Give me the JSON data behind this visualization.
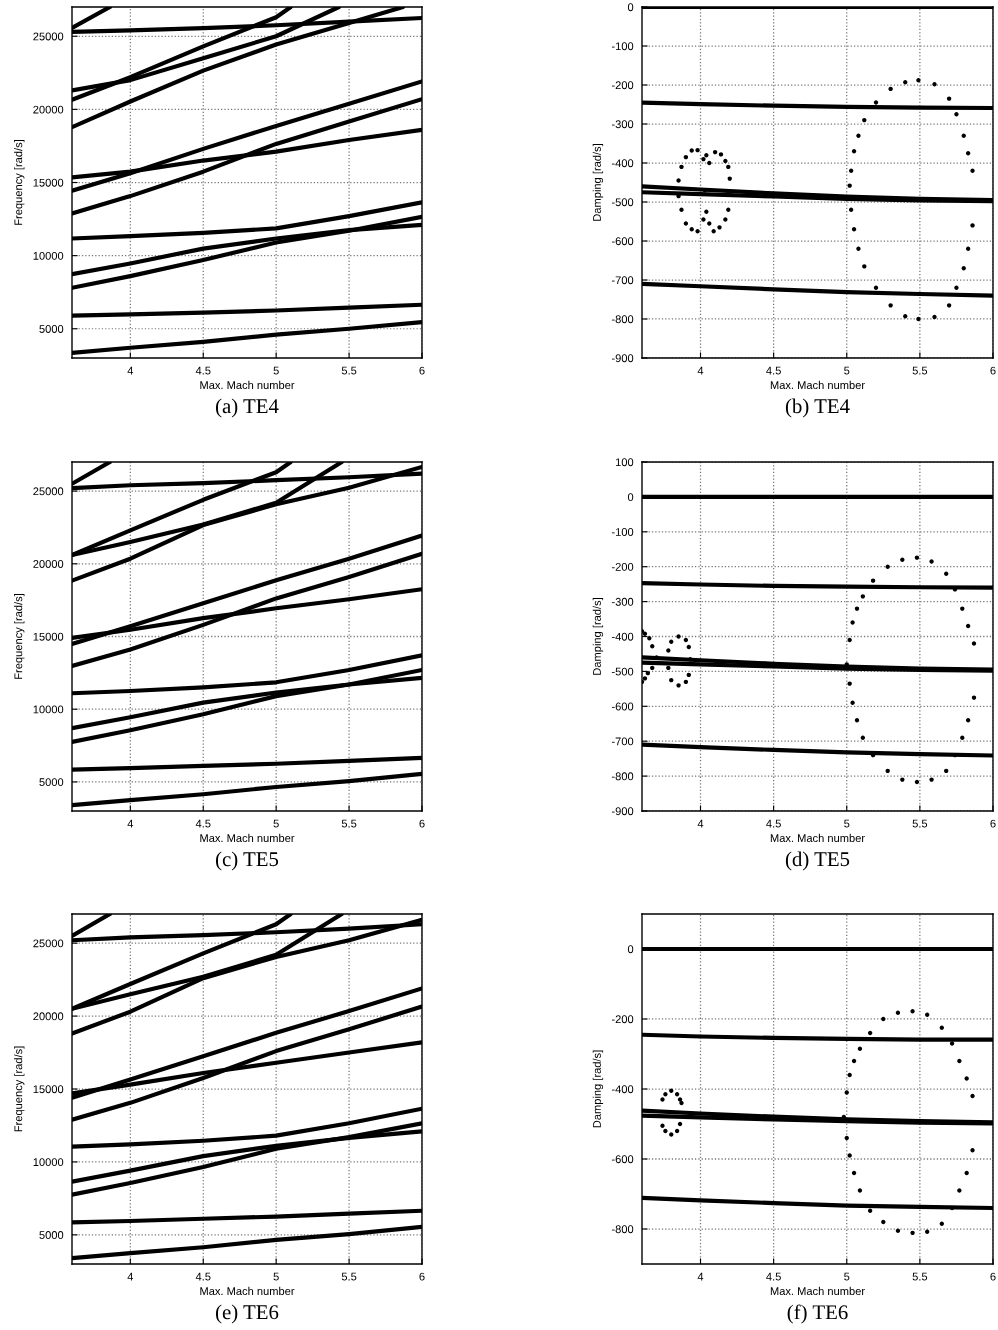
{
  "chart_data": [
    {
      "type": "line",
      "title": "(a) TE4",
      "xlabel": "Max. Mach number",
      "ylabel": "Frequency [rad/s]",
      "x": [
        3.6,
        4,
        4.5,
        5,
        5.5,
        6
      ],
      "xlim": [
        3.6,
        6
      ],
      "ylim": [
        3000,
        27000
      ],
      "xticks": [
        4,
        4.5,
        5,
        5.5,
        6
      ],
      "yticks": [
        5000,
        10000,
        15000,
        20000,
        25000
      ],
      "grid": true,
      "series": [
        {
          "color": "#000000",
          "values": [
            3350,
            3700,
            4100,
            4600,
            5000,
            5450
          ]
        },
        {
          "color": "#000000",
          "values": [
            5900,
            5980,
            6100,
            6250,
            6450,
            6640
          ]
        },
        {
          "color": "#000000",
          "values": [
            7800,
            8600,
            9700,
            10900,
            11700,
            12650
          ]
        },
        {
          "color": "#000000",
          "values": [
            8730,
            9460,
            10480,
            11170,
            11740,
            12100
          ]
        },
        {
          "color": "#000000",
          "values": [
            11170,
            11330,
            11560,
            11860,
            12700,
            13640
          ]
        },
        {
          "color": "#000000",
          "values": [
            12880,
            14070,
            15740,
            17640,
            19170,
            20700
          ]
        },
        {
          "color": "#000000",
          "values": [
            14440,
            15630,
            17300,
            18870,
            20380,
            21910
          ]
        },
        {
          "color": "#000000",
          "values": [
            15350,
            15740,
            16500,
            17110,
            17910,
            18600
          ]
        },
        {
          "color": "#000000",
          "x": [
            3.6,
            4,
            4.5,
            5,
            5.5,
            5.87
          ],
          "values": [
            18780,
            20540,
            22650,
            24430,
            25900,
            27000
          ]
        },
        {
          "color": "#000000",
          "x": [
            3.6,
            4,
            4.5,
            5,
            5.1
          ],
          "values": [
            20660,
            22200,
            24310,
            26300,
            27000
          ]
        },
        {
          "color": "#000000",
          "x": [
            3.6,
            4,
            4.5,
            5,
            5.43
          ],
          "values": [
            21300,
            22000,
            23500,
            25000,
            27000
          ]
        },
        {
          "color": "#000000",
          "values": [
            25300,
            25400,
            25550,
            25750,
            26000,
            26250
          ]
        },
        {
          "color": "#000000",
          "x": [
            3.6,
            3.86
          ],
          "values": [
            25570,
            27000
          ]
        }
      ]
    },
    {
      "type": "line",
      "title": "(b) TE4",
      "xlabel": "Max. Mach number",
      "ylabel": "Damping [rad/s]",
      "x": [
        3.6,
        4,
        4.5,
        5,
        5.5,
        6
      ],
      "xlim": [
        3.6,
        6
      ],
      "ylim": [
        -900,
        0
      ],
      "xticks": [
        4,
        4.5,
        5,
        5.5,
        6
      ],
      "yticks": [
        -900,
        -800,
        -700,
        -600,
        -500,
        -400,
        -300,
        -200,
        -100,
        0
      ],
      "grid": true,
      "series": [
        {
          "color": "#000000",
          "values": [
            0,
            0,
            0,
            0,
            0,
            0
          ]
        },
        {
          "color": "#000000",
          "values": [
            -245,
            -249,
            -253,
            -256,
            -258,
            -259
          ]
        },
        {
          "color": "#000000",
          "values": [
            -460,
            -468,
            -478,
            -486,
            -492,
            -495
          ]
        },
        {
          "color": "#000000",
          "values": [
            -475,
            -480,
            -486,
            -492,
            -496,
            -498
          ]
        },
        {
          "color": "#000000",
          "values": [
            -710,
            -716,
            -724,
            -731,
            -736,
            -740
          ]
        },
        {
          "type": "scatter",
          "marker": "circle",
          "color": "#000000",
          "x": [
            5.02,
            5.03,
            5.05,
            5.08,
            5.12,
            5.2,
            5.3,
            5.4,
            5.49,
            5.6,
            5.7,
            5.75,
            5.8,
            5.83,
            5.86,
            5.86,
            5.83,
            5.8,
            5.75,
            5.7,
            5.6,
            5.49,
            5.4,
            5.3,
            5.2,
            5.12,
            5.08,
            5.05,
            5.03
          ],
          "values": [
            -458,
            -420,
            -370,
            -330,
            -290,
            -245,
            -210,
            -193,
            -188,
            -198,
            -235,
            -275,
            -330,
            -375,
            -420,
            -560,
            -620,
            -670,
            -720,
            -765,
            -795,
            -800,
            -793,
            -765,
            -720,
            -665,
            -620,
            -570,
            -520
          ]
        },
        {
          "type": "scatter",
          "marker": "circle",
          "color": "#000000",
          "x": [
            3.85,
            3.87,
            3.9,
            3.94,
            3.98,
            4.02,
            4.03,
            4.02,
            3.98,
            3.94,
            3.9,
            3.87,
            3.85
          ],
          "values": [
            -445,
            -410,
            -385,
            -368,
            -367,
            -390,
            -470,
            -545,
            -575,
            -570,
            -555,
            -520,
            -485
          ]
        },
        {
          "type": "scatter",
          "marker": "circle",
          "color": "#000000",
          "x": [
            4.04,
            4.06,
            4.1,
            4.14,
            4.17,
            4.19,
            4.2,
            4.19,
            4.17,
            4.13,
            4.09,
            4.06,
            4.04
          ],
          "values": [
            -380,
            -400,
            -372,
            -378,
            -395,
            -410,
            -440,
            -520,
            -545,
            -565,
            -575,
            -555,
            -525
          ]
        }
      ]
    },
    {
      "type": "line",
      "title": "(c) TE5",
      "xlabel": "Max. Mach number",
      "ylabel": "Frequency [rad/s]",
      "x": [
        3.6,
        4,
        4.5,
        5,
        5.5,
        6
      ],
      "xlim": [
        3.6,
        6
      ],
      "ylim": [
        3000,
        27000
      ],
      "xticks": [
        4,
        4.5,
        5,
        5.5,
        6
      ],
      "yticks": [
        5000,
        10000,
        15000,
        20000,
        25000
      ],
      "grid": true,
      "series": [
        {
          "color": "#000000",
          "values": [
            3400,
            3750,
            4150,
            4650,
            5050,
            5550
          ]
        },
        {
          "color": "#000000",
          "values": [
            5850,
            5950,
            6100,
            6250,
            6450,
            6650
          ]
        },
        {
          "color": "#000000",
          "values": [
            7750,
            8550,
            9650,
            10900,
            11700,
            12700
          ]
        },
        {
          "color": "#000000",
          "values": [
            8700,
            9450,
            10450,
            11150,
            11700,
            12150
          ]
        },
        {
          "color": "#000000",
          "values": [
            11100,
            11250,
            11500,
            11850,
            12700,
            13700
          ]
        },
        {
          "color": "#000000",
          "values": [
            12970,
            14100,
            15800,
            17620,
            19100,
            20690
          ]
        },
        {
          "color": "#000000",
          "values": [
            14490,
            15700,
            17280,
            18870,
            20350,
            21940
          ]
        },
        {
          "color": "#000000",
          "values": [
            14900,
            15460,
            16260,
            16940,
            17560,
            18250
          ]
        },
        {
          "color": "#000000",
          "values": [
            18840,
            20350,
            22660,
            24100,
            25230,
            26660
          ]
        },
        {
          "color": "#000000",
          "x": [
            3.6,
            4,
            4.5,
            5,
            5.1
          ],
          "values": [
            20600,
            22300,
            24400,
            26300,
            27000
          ]
        },
        {
          "color": "#000000",
          "x": [
            3.6,
            4,
            4.5,
            5,
            5.45
          ],
          "values": [
            20600,
            21500,
            22700,
            24200,
            27000
          ]
        },
        {
          "color": "#000000",
          "values": [
            25200,
            25400,
            25550,
            25750,
            25950,
            26200
          ]
        },
        {
          "color": "#000000",
          "x": [
            3.6,
            3.86
          ],
          "values": [
            25500,
            27000
          ]
        }
      ]
    },
    {
      "type": "line",
      "title": "(d) TE5",
      "xlabel": "Max. Mach number",
      "ylabel": "Damping [rad/s]",
      "x": [
        3.6,
        4,
        4.5,
        5,
        5.5,
        6
      ],
      "xlim": [
        3.6,
        6
      ],
      "ylim": [
        -900,
        100
      ],
      "xticks": [
        4,
        4.5,
        5,
        5.5,
        6
      ],
      "yticks": [
        -900,
        -800,
        -700,
        -600,
        -500,
        -400,
        -300,
        -200,
        -100,
        0,
        100
      ],
      "grid": true,
      "series": [
        {
          "color": "#000000",
          "values": [
            0,
            0,
            0,
            0,
            0,
            0
          ]
        },
        {
          "color": "#000000",
          "values": [
            -247,
            -251,
            -255,
            -257,
            -259,
            -260
          ]
        },
        {
          "color": "#000000",
          "values": [
            -460,
            -468,
            -478,
            -486,
            -492,
            -495
          ]
        },
        {
          "color": "#000000",
          "values": [
            -475,
            -480,
            -486,
            -492,
            -496,
            -498
          ]
        },
        {
          "color": "#000000",
          "values": [
            -710,
            -717,
            -725,
            -732,
            -737,
            -741
          ]
        },
        {
          "type": "scatter",
          "marker": "circle",
          "color": "#000000",
          "x": [
            5.0,
            5.02,
            5.04,
            5.07,
            5.11,
            5.18,
            5.28,
            5.38,
            5.48,
            5.58,
            5.68,
            5.74,
            5.79,
            5.83,
            5.87,
            5.87,
            5.83,
            5.79,
            5.74,
            5.68,
            5.58,
            5.48,
            5.38,
            5.28,
            5.18,
            5.11,
            5.07,
            5.04,
            5.02
          ],
          "values": [
            -480,
            -410,
            -360,
            -320,
            -285,
            -240,
            -200,
            -180,
            -174,
            -185,
            -220,
            -265,
            -320,
            -370,
            -420,
            -575,
            -640,
            -690,
            -740,
            -785,
            -810,
            -817,
            -810,
            -785,
            -740,
            -690,
            -640,
            -590,
            -535
          ]
        },
        {
          "type": "scatter",
          "marker": "circle",
          "color": "#000000",
          "x": [
            3.6,
            3.62,
            3.65,
            3.67,
            3.7,
            3.67,
            3.64,
            3.62,
            3.6
          ],
          "values": [
            -385,
            -392,
            -405,
            -428,
            -460,
            -490,
            -505,
            -520,
            -530
          ]
        },
        {
          "type": "scatter",
          "marker": "circle",
          "color": "#000000",
          "x": [
            3.78,
            3.8,
            3.85,
            3.9,
            3.92,
            3.93,
            3.92,
            3.9,
            3.85,
            3.8,
            3.78
          ],
          "values": [
            -440,
            -415,
            -400,
            -410,
            -430,
            -465,
            -510,
            -530,
            -540,
            -525,
            -490
          ]
        }
      ]
    },
    {
      "type": "line",
      "title": "(e) TE6",
      "xlabel": "Max. Mach number",
      "ylabel": "Frequency [rad/s]",
      "x": [
        3.6,
        4,
        4.5,
        5,
        5.5,
        6
      ],
      "xlim": [
        3.6,
        6
      ],
      "ylim": [
        3000,
        27000
      ],
      "xticks": [
        4,
        4.5,
        5,
        5.5,
        6
      ],
      "yticks": [
        5000,
        10000,
        15000,
        20000,
        25000
      ],
      "grid": true,
      "series": [
        {
          "color": "#000000",
          "values": [
            3400,
            3750,
            4150,
            4650,
            5050,
            5550
          ]
        },
        {
          "color": "#000000",
          "values": [
            5850,
            5950,
            6100,
            6250,
            6450,
            6650
          ]
        },
        {
          "color": "#000000",
          "values": [
            7750,
            8550,
            9650,
            10900,
            11700,
            12650
          ]
        },
        {
          "color": "#000000",
          "values": [
            8650,
            9400,
            10400,
            11100,
            11650,
            12100
          ]
        },
        {
          "color": "#000000",
          "values": [
            11050,
            11200,
            11450,
            11800,
            12650,
            13650
          ]
        },
        {
          "color": "#000000",
          "values": [
            12900,
            14050,
            15750,
            17600,
            19100,
            20650
          ]
        },
        {
          "color": "#000000",
          "values": [
            14400,
            15650,
            17250,
            18850,
            20350,
            21900
          ]
        },
        {
          "color": "#000000",
          "values": [
            14700,
            15300,
            16100,
            16800,
            17500,
            18200
          ]
        },
        {
          "color": "#000000",
          "values": [
            18800,
            20300,
            22600,
            24050,
            25200,
            26600
          ]
        },
        {
          "color": "#000000",
          "x": [
            3.6,
            4,
            4.5,
            5,
            5.1
          ],
          "values": [
            20500,
            22200,
            24300,
            26300,
            27000
          ]
        },
        {
          "color": "#000000",
          "x": [
            3.6,
            4,
            4.5,
            5,
            5.45
          ],
          "values": [
            20500,
            21500,
            22700,
            24200,
            27000
          ]
        },
        {
          "color": "#000000",
          "values": [
            25200,
            25400,
            25550,
            25750,
            26000,
            26300
          ]
        },
        {
          "color": "#000000",
          "x": [
            3.6,
            3.86
          ],
          "values": [
            25500,
            27000
          ]
        }
      ]
    },
    {
      "type": "line",
      "title": "(f) TE6",
      "xlabel": "Max. Mach number",
      "ylabel": "Damping [rad/s]",
      "x": [
        3.6,
        4,
        4.5,
        5,
        5.5,
        6
      ],
      "xlim": [
        3.6,
        6
      ],
      "ylim": [
        -900,
        100
      ],
      "xticks": [
        4,
        4.5,
        5,
        5.5,
        6
      ],
      "yticks": [
        -800,
        -600,
        -400,
        -200,
        0
      ],
      "grid": true,
      "series": [
        {
          "color": "#000000",
          "values": [
            0,
            0,
            0,
            0,
            0,
            0
          ]
        },
        {
          "color": "#000000",
          "values": [
            -245,
            -250,
            -254,
            -257,
            -259,
            -259
          ]
        },
        {
          "color": "#000000",
          "values": [
            -462,
            -470,
            -479,
            -487,
            -492,
            -495
          ]
        },
        {
          "color": "#000000",
          "values": [
            -476,
            -481,
            -487,
            -492,
            -496,
            -498
          ]
        },
        {
          "color": "#000000",
          "values": [
            -711,
            -718,
            -726,
            -733,
            -737,
            -740
          ]
        },
        {
          "type": "scatter",
          "marker": "circle",
          "color": "#000000",
          "x": [
            4.98,
            5.0,
            5.02,
            5.05,
            5.09,
            5.16,
            5.25,
            5.35,
            5.45,
            5.55,
            5.65,
            5.72,
            5.77,
            5.82,
            5.86,
            5.86,
            5.82,
            5.77,
            5.72,
            5.65,
            5.55,
            5.45,
            5.35,
            5.25,
            5.16,
            5.09,
            5.05,
            5.02,
            5.0
          ],
          "values": [
            -480,
            -410,
            -360,
            -320,
            -285,
            -240,
            -200,
            -182,
            -178,
            -188,
            -225,
            -270,
            -320,
            -370,
            -420,
            -575,
            -640,
            -690,
            -740,
            -785,
            -808,
            -811,
            -805,
            -780,
            -748,
            -690,
            -640,
            -590,
            -540
          ]
        },
        {
          "type": "scatter",
          "marker": "circle",
          "color": "#000000",
          "x": [
            3.74,
            3.76,
            3.8,
            3.84,
            3.86,
            3.87,
            3.86,
            3.84,
            3.8,
            3.76,
            3.74
          ],
          "values": [
            -430,
            -415,
            -405,
            -415,
            -430,
            -440,
            -500,
            -520,
            -530,
            -520,
            -505
          ]
        }
      ]
    }
  ]
}
